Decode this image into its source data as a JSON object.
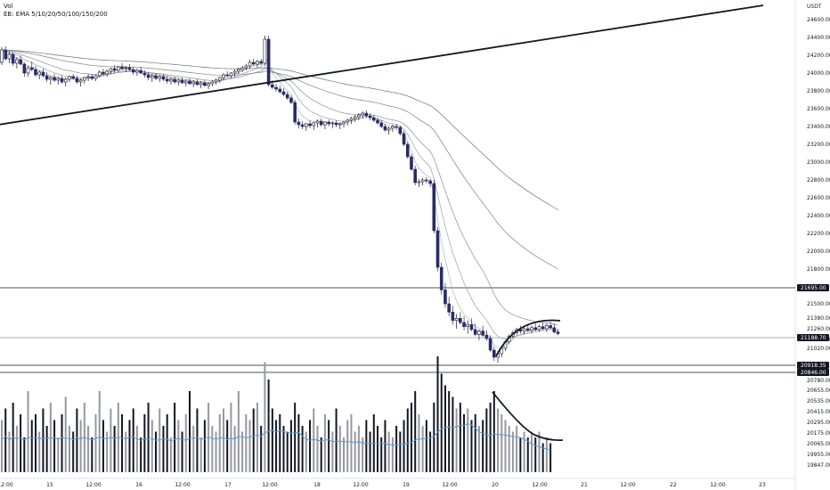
{
  "legend": {
    "vol_label": "Vol",
    "ema_label": "EB: EMA 5/10/20/50/100/150/200"
  },
  "currency_label": "USDT",
  "chart_data": {
    "type": "candlestick",
    "price_axis": {
      "min": 19800,
      "max": 24800,
      "ticks": [
        24600,
        24400,
        24200,
        24000,
        23800,
        23600,
        23400,
        23200,
        23000,
        22800,
        22600,
        22400,
        22200,
        22000,
        21800,
        21500,
        21380,
        21260,
        21140,
        21020,
        20780,
        20655,
        20535,
        20415,
        20295,
        20175,
        20065,
        19955,
        19847
      ],
      "tick_labels": [
        "24600.00",
        "24400.00",
        "24200.00",
        "24000.00",
        "23800.00",
        "23600.00",
        "23400.00",
        "23200.00",
        "23000.00",
        "22800.00",
        "22600.00",
        "22400.00",
        "22200.00",
        "22000.00",
        "21800.00",
        "21500.00",
        "21380.00",
        "21260.00",
        "21140.00",
        "21020.00",
        "20780.00",
        "20655.00",
        "20535.00",
        "20415.00",
        "20295.00",
        "20175.00",
        "20065.00",
        "19955.00",
        "19847.00"
      ]
    },
    "time_axis": {
      "labels": [
        "12:00",
        "15",
        "12:00",
        "16",
        "12:00",
        "17",
        "12:00",
        "18",
        "12:00",
        "19",
        "12:00",
        "20",
        "12:00",
        "21",
        "12:00",
        "22",
        "12:00",
        "23"
      ]
    },
    "horizontal_levels": [
      {
        "value": 21695,
        "label": "21695.00",
        "badge_color": "#131722"
      },
      {
        "value": 21188.7,
        "label": "21188.70",
        "badge_color": "#131722"
      },
      {
        "value": 20918.35,
        "label": "20918.35",
        "badge_color": "#131722"
      },
      {
        "value": 20846,
        "label": "20846.00",
        "badge_color": "#131722"
      }
    ],
    "ohlc": [
      [
        24120,
        24290,
        24090,
        24260
      ],
      [
        24260,
        24300,
        24140,
        24160
      ],
      [
        24160,
        24240,
        24110,
        24210
      ],
      [
        24210,
        24230,
        24080,
        24110
      ],
      [
        24110,
        24180,
        24050,
        24150
      ],
      [
        24150,
        24200,
        24090,
        24100
      ],
      [
        24100,
        24120,
        23960,
        24000
      ],
      [
        24000,
        24080,
        23960,
        24060
      ],
      [
        24060,
        24130,
        24020,
        24040
      ],
      [
        24040,
        24080,
        23960,
        23980
      ],
      [
        23980,
        24030,
        23930,
        24010
      ],
      [
        24010,
        24050,
        23950,
        23970
      ],
      [
        23970,
        24010,
        23900,
        23930
      ],
      [
        23930,
        23970,
        23870,
        23950
      ],
      [
        23950,
        23990,
        23900,
        23920
      ],
      [
        23920,
        23960,
        23870,
        23940
      ],
      [
        23940,
        23970,
        23880,
        23900
      ],
      [
        23900,
        23950,
        23850,
        23930
      ],
      [
        23930,
        23970,
        23900,
        23960
      ],
      [
        23960,
        23990,
        23920,
        23940
      ],
      [
        23940,
        23970,
        23880,
        23900
      ],
      [
        23900,
        23940,
        23850,
        23920
      ],
      [
        23920,
        23960,
        23880,
        23950
      ],
      [
        23950,
        23990,
        23910,
        23960
      ],
      [
        23960,
        23990,
        23920,
        23940
      ],
      [
        23940,
        23980,
        23910,
        23970
      ],
      [
        23970,
        24030,
        23950,
        24010
      ],
      [
        24010,
        24050,
        23970,
        23990
      ],
      [
        23990,
        24040,
        23960,
        24020
      ],
      [
        24020,
        24060,
        23990,
        24050
      ],
      [
        24050,
        24090,
        24000,
        24030
      ],
      [
        24030,
        24080,
        24010,
        24070
      ],
      [
        24070,
        24110,
        24030,
        24050
      ],
      [
        24050,
        24080,
        24010,
        24060
      ],
      [
        24060,
        24100,
        24020,
        24040
      ],
      [
        24040,
        24070,
        23980,
        24010
      ],
      [
        24010,
        24050,
        23970,
        24030
      ],
      [
        24030,
        24070,
        23990,
        24000
      ],
      [
        24000,
        24030,
        23950,
        23980
      ],
      [
        23980,
        24010,
        23920,
        23950
      ],
      [
        23950,
        23990,
        23900,
        23970
      ],
      [
        23970,
        24000,
        23920,
        23940
      ],
      [
        23940,
        23980,
        23900,
        23960
      ],
      [
        23960,
        23990,
        23910,
        23930
      ],
      [
        23930,
        23970,
        23880,
        23910
      ],
      [
        23910,
        23950,
        23870,
        23930
      ],
      [
        23930,
        23960,
        23880,
        23900
      ],
      [
        23900,
        23940,
        23860,
        23920
      ],
      [
        23920,
        23950,
        23880,
        23890
      ],
      [
        23890,
        23930,
        23850,
        23910
      ],
      [
        23910,
        23940,
        23870,
        23880
      ],
      [
        23880,
        23920,
        23840,
        23900
      ],
      [
        23900,
        23930,
        23860,
        23870
      ],
      [
        23870,
        23910,
        23830,
        23890
      ],
      [
        23890,
        23920,
        23850,
        23860
      ],
      [
        23860,
        23900,
        23820,
        23880
      ],
      [
        23880,
        23920,
        23850,
        23900
      ],
      [
        23900,
        23940,
        23870,
        23920
      ],
      [
        23920,
        23960,
        23890,
        23950
      ],
      [
        23950,
        24000,
        23920,
        23980
      ],
      [
        23980,
        24020,
        23950,
        23970
      ],
      [
        23970,
        24010,
        23940,
        24000
      ],
      [
        24000,
        24040,
        23960,
        24020
      ],
      [
        24020,
        24060,
        23990,
        24040
      ],
      [
        24040,
        24080,
        24010,
        24060
      ],
      [
        24060,
        24100,
        24030,
        24080
      ],
      [
        24080,
        24150,
        24050,
        24120
      ],
      [
        24120,
        24160,
        24080,
        24100
      ],
      [
        24100,
        24150,
        24060,
        24130
      ],
      [
        24130,
        24160,
        24090,
        24110
      ],
      [
        24110,
        24420,
        24080,
        24380
      ],
      [
        24380,
        24420,
        23850,
        23870
      ],
      [
        23870,
        23920,
        23820,
        23840
      ],
      [
        23840,
        23880,
        23790,
        23820
      ],
      [
        23820,
        23860,
        23770,
        23790
      ],
      [
        23790,
        23830,
        23740,
        23760
      ],
      [
        23760,
        23790,
        23700,
        23720
      ],
      [
        23720,
        23750,
        23650,
        23670
      ],
      [
        23670,
        23700,
        23420,
        23450
      ],
      [
        23450,
        23490,
        23380,
        23420
      ],
      [
        23420,
        23460,
        23370,
        23400
      ],
      [
        23400,
        23440,
        23350,
        23430
      ],
      [
        23430,
        23470,
        23380,
        23410
      ],
      [
        23410,
        23450,
        23360,
        23440
      ],
      [
        23440,
        23480,
        23390,
        23460
      ],
      [
        23460,
        23490,
        23400,
        23420
      ],
      [
        23420,
        23460,
        23370,
        23450
      ],
      [
        23450,
        23480,
        23400,
        23430
      ],
      [
        23430,
        23460,
        23380,
        23440
      ],
      [
        23440,
        23470,
        23390,
        23420
      ],
      [
        23420,
        23450,
        23370,
        23430
      ],
      [
        23430,
        23460,
        23390,
        23450
      ],
      [
        23450,
        23490,
        23410,
        23470
      ],
      [
        23470,
        23510,
        23430,
        23490
      ],
      [
        23490,
        23530,
        23450,
        23510
      ],
      [
        23510,
        23550,
        23470,
        23530
      ],
      [
        23530,
        23570,
        23490,
        23550
      ],
      [
        23550,
        23580,
        23500,
        23520
      ],
      [
        23520,
        23550,
        23470,
        23500
      ],
      [
        23500,
        23530,
        23450,
        23470
      ],
      [
        23470,
        23500,
        23420,
        23440
      ],
      [
        23440,
        23470,
        23380,
        23400
      ],
      [
        23400,
        23430,
        23340,
        23360
      ],
      [
        23360,
        23400,
        23310,
        23380
      ],
      [
        23380,
        23420,
        23340,
        23400
      ],
      [
        23400,
        23430,
        23360,
        23390
      ],
      [
        23390,
        23410,
        23300,
        23320
      ],
      [
        23320,
        23350,
        23180,
        23200
      ],
      [
        23200,
        23230,
        23040,
        23060
      ],
      [
        23060,
        23090,
        22900,
        22920
      ],
      [
        22920,
        22960,
        22740,
        22770
      ],
      [
        22770,
        22810,
        22720,
        22780
      ],
      [
        22780,
        22820,
        22740,
        22800
      ],
      [
        22800,
        22830,
        22760,
        22790
      ],
      [
        22790,
        22810,
        22720,
        22760
      ],
      [
        22760,
        22800,
        22200,
        22230
      ],
      [
        22230,
        22270,
        21780,
        21820
      ],
      [
        21820,
        21870,
        21580,
        21620
      ],
      [
        21620,
        21680,
        21460,
        21500
      ],
      [
        21500,
        21560,
        21380,
        21420
      ],
      [
        21420,
        21480,
        21300,
        21340
      ],
      [
        21340,
        21400,
        21260,
        21360
      ],
      [
        21360,
        21420,
        21300,
        21320
      ],
      [
        21320,
        21380,
        21240,
        21280
      ],
      [
        21280,
        21340,
        21200,
        21300
      ],
      [
        21300,
        21360,
        21230,
        21250
      ],
      [
        21250,
        21310,
        21170,
        21190
      ],
      [
        21190,
        21250,
        21120,
        21230
      ],
      [
        21230,
        21290,
        21160,
        21180
      ],
      [
        21180,
        21240,
        21110,
        21140
      ],
      [
        21140,
        21180,
        20980,
        21000
      ],
      [
        21000,
        21040,
        20880,
        20920
      ],
      [
        20920,
        20990,
        20860,
        20960
      ],
      [
        20960,
        21040,
        20920,
        21020
      ],
      [
        21020,
        21120,
        20990,
        21100
      ],
      [
        21100,
        21190,
        21070,
        21170
      ],
      [
        21170,
        21240,
        21140,
        21210
      ],
      [
        21210,
        21270,
        21180,
        21250
      ],
      [
        21250,
        21290,
        21200,
        21230
      ],
      [
        21230,
        21280,
        21190,
        21260
      ],
      [
        21260,
        21300,
        21220,
        21240
      ],
      [
        21240,
        21290,
        21200,
        21270
      ],
      [
        21270,
        21310,
        21230,
        21250
      ],
      [
        21250,
        21300,
        21220,
        21280
      ],
      [
        21280,
        21320,
        21240,
        21260
      ],
      [
        21260,
        21310,
        21220,
        21290
      ],
      [
        21290,
        21330,
        21250,
        21270
      ],
      [
        21270,
        21310,
        21200,
        21220
      ],
      [
        21220,
        21260,
        21180,
        21200
      ]
    ],
    "volume": [
      0.45,
      0.55,
      0.35,
      0.6,
      0.4,
      0.5,
      0.3,
      0.7,
      0.45,
      0.5,
      0.35,
      0.55,
      0.4,
      0.6,
      0.45,
      0.3,
      0.5,
      0.65,
      0.4,
      0.35,
      0.55,
      0.45,
      0.6,
      0.4,
      0.3,
      0.5,
      0.7,
      0.45,
      0.35,
      0.55,
      0.4,
      0.6,
      0.5,
      0.35,
      0.45,
      0.55,
      0.4,
      0.3,
      0.5,
      0.6,
      0.45,
      0.35,
      0.55,
      0.4,
      0.5,
      0.3,
      0.6,
      0.45,
      0.35,
      0.5,
      0.7,
      0.4,
      0.55,
      0.3,
      0.45,
      0.6,
      0.4,
      0.35,
      0.5,
      0.55,
      0.45,
      0.6,
      0.4,
      0.7,
      0.35,
      0.5,
      0.45,
      0.55,
      0.6,
      0.4,
      0.95,
      0.8,
      0.55,
      0.45,
      0.5,
      0.4,
      0.35,
      0.45,
      0.6,
      0.5,
      0.4,
      0.35,
      0.45,
      0.55,
      0.4,
      0.3,
      0.5,
      0.45,
      0.35,
      0.55,
      0.4,
      0.3,
      0.45,
      0.5,
      0.35,
      0.4,
      0.3,
      0.45,
      0.35,
      0.5,
      0.4,
      0.3,
      0.45,
      0.35,
      0.3,
      0.4,
      0.35,
      0.45,
      0.55,
      0.6,
      0.7,
      0.5,
      0.4,
      0.45,
      0.35,
      0.6,
      1.0,
      0.85,
      0.75,
      0.7,
      0.65,
      0.55,
      0.6,
      0.5,
      0.55,
      0.45,
      0.5,
      0.4,
      0.45,
      0.55,
      0.6,
      0.7,
      0.55,
      0.5,
      0.45,
      0.4,
      0.35,
      0.4,
      0.3,
      0.35,
      0.3,
      0.35,
      0.3,
      0.35,
      0.25,
      0.3,
      0.25
    ],
    "trendlines": [
      {
        "from": [
          -1,
          23550
        ],
        "to": [
          230,
          24830
        ]
      }
    ]
  }
}
